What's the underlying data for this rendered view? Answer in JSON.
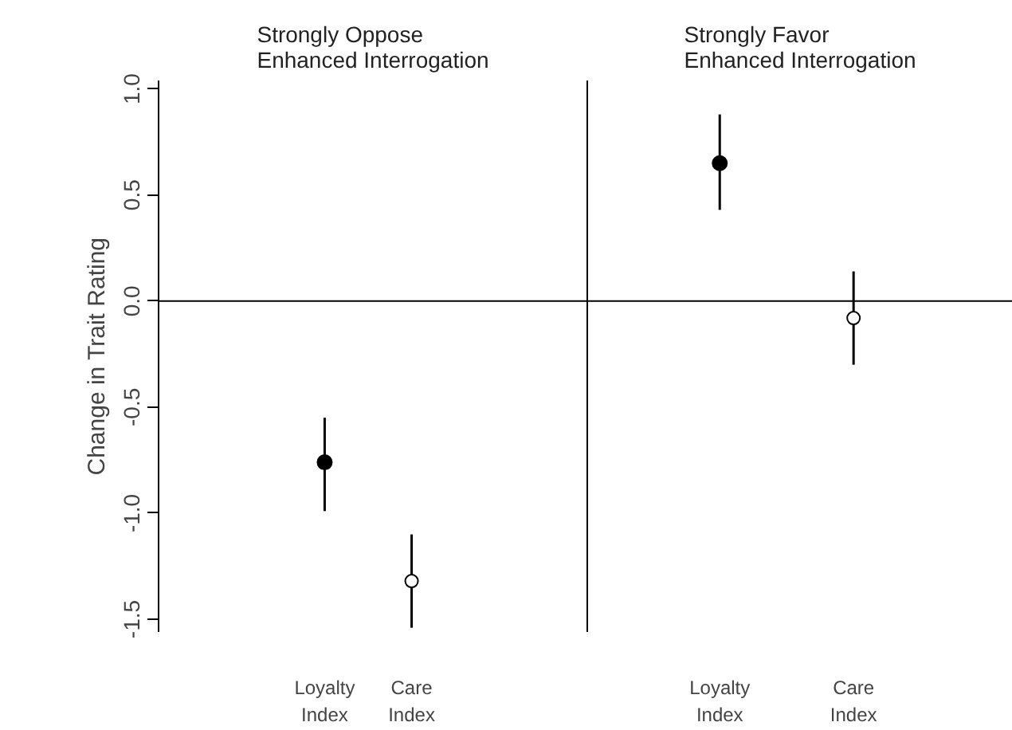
{
  "chart_data": [
    {
      "type": "scatter",
      "title": "Strongly Oppose\nEnhanced Interrogation",
      "ylabel": "Change in Trait Rating",
      "categories": [
        "Loyalty Index",
        "Care Index"
      ],
      "ylim": [
        -1.56,
        1.04
      ],
      "yticks": [
        -1.5,
        {
          "value": -1.0,
          "label": "-1.0"
        },
        -0.5,
        {
          "value": 0.0,
          "label": "0.0"
        },
        0.5,
        {
          "value": 1.0,
          "label": "1.0"
        }
      ],
      "grid": false,
      "marker": "circle",
      "series": [
        {
          "color": "#000000",
          "values": [
            -0.76,
            null
          ],
          "errors": [
            [
              -0.99,
              -0.55
            ],
            null
          ]
        },
        {
          "color": "#ffffff",
          "values": [
            null,
            -1.32
          ],
          "errors": [
            null,
            [
              -1.54,
              -1.1
            ]
          ]
        }
      ],
      "ref_lines": [
        {
          "axis": "y",
          "value": 0
        }
      ]
    },
    {
      "type": "scatter",
      "title": "Strongly Favor\nEnhanced Interrogation",
      "categories": [
        "Loyalty Index",
        "Care Index"
      ],
      "ylim": [
        -1.56,
        1.04
      ],
      "tick_labels": "x",
      "grid": false,
      "marker": "circle",
      "series": [
        {
          "color": "#000000",
          "values": [
            0.65,
            null
          ],
          "errors": [
            [
              0.43,
              0.88
            ],
            null
          ]
        },
        {
          "color": "#ffffff",
          "values": [
            null,
            -0.08
          ],
          "errors": [
            null,
            [
              -0.3,
              0.14
            ]
          ]
        }
      ],
      "ref_lines": [
        {
          "axis": "y",
          "value": 0
        }
      ]
    }
  ]
}
